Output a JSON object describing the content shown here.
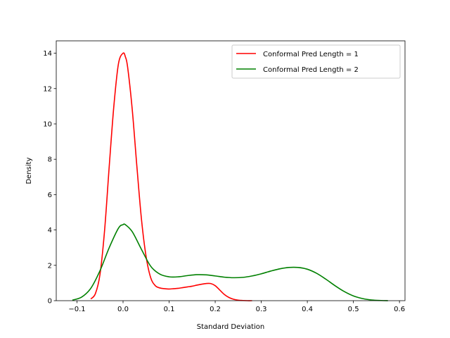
{
  "chart_data": {
    "type": "line",
    "title": "",
    "xlabel": "Standard Deviation",
    "ylabel": "Density",
    "xlim": [
      -0.145,
      0.612
    ],
    "ylim": [
      0,
      14.7
    ],
    "xticks": [
      -0.1,
      0.0,
      0.1,
      0.2,
      0.3,
      0.4,
      0.5,
      0.6
    ],
    "xtick_labels": [
      "−0.1",
      "0.0",
      "0.1",
      "0.2",
      "0.3",
      "0.4",
      "0.5",
      "0.6"
    ],
    "yticks": [
      0,
      2,
      4,
      6,
      8,
      10,
      12,
      14
    ],
    "ytick_labels": [
      "0",
      "2",
      "4",
      "6",
      "8",
      "10",
      "12",
      "14"
    ],
    "grid": false,
    "legend_position": "top-right",
    "series": [
      {
        "name": "Conformal Pred Length = 1",
        "color": "#ff0000",
        "x": [
          -0.07,
          -0.06,
          -0.05,
          -0.04,
          -0.03,
          -0.02,
          -0.01,
          0.0,
          0.005,
          0.01,
          0.02,
          0.03,
          0.04,
          0.05,
          0.06,
          0.07,
          0.08,
          0.09,
          0.1,
          0.11,
          0.12,
          0.13,
          0.14,
          0.15,
          0.16,
          0.17,
          0.18,
          0.19,
          0.2,
          0.21,
          0.22,
          0.23,
          0.24,
          0.25,
          0.26,
          0.27,
          0.28
        ],
        "y": [
          0.1,
          0.4,
          1.5,
          4.0,
          7.6,
          11.0,
          13.4,
          14.0,
          13.8,
          13.2,
          10.8,
          7.6,
          4.6,
          2.5,
          1.3,
          0.85,
          0.72,
          0.68,
          0.66,
          0.68,
          0.7,
          0.74,
          0.78,
          0.82,
          0.88,
          0.93,
          0.97,
          0.97,
          0.85,
          0.6,
          0.35,
          0.18,
          0.08,
          0.03,
          0.01,
          0.0,
          0.0
        ]
      },
      {
        "name": "Conformal Pred Length = 2",
        "color": "#008000",
        "x": [
          -0.11,
          -0.09,
          -0.07,
          -0.05,
          -0.03,
          -0.01,
          0.0,
          0.005,
          0.02,
          0.04,
          0.06,
          0.08,
          0.1,
          0.12,
          0.14,
          0.16,
          0.18,
          0.2,
          0.22,
          0.24,
          0.26,
          0.28,
          0.3,
          0.32,
          0.34,
          0.36,
          0.38,
          0.4,
          0.42,
          0.44,
          0.46,
          0.48,
          0.5,
          0.52,
          0.54,
          0.56,
          0.575
        ],
        "y": [
          0.03,
          0.2,
          0.7,
          1.7,
          3.0,
          4.1,
          4.3,
          4.3,
          3.9,
          2.9,
          1.95,
          1.5,
          1.35,
          1.35,
          1.42,
          1.47,
          1.46,
          1.4,
          1.33,
          1.3,
          1.32,
          1.4,
          1.52,
          1.67,
          1.8,
          1.88,
          1.88,
          1.78,
          1.55,
          1.22,
          0.85,
          0.52,
          0.27,
          0.12,
          0.04,
          0.01,
          0.0
        ]
      }
    ]
  }
}
